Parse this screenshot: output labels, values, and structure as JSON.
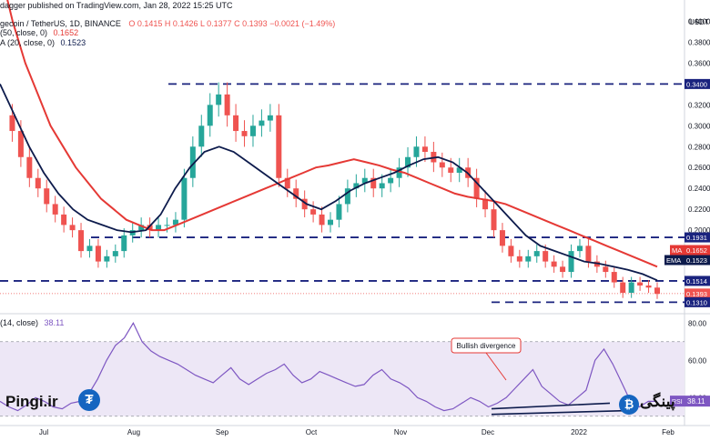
{
  "header": {
    "published": "dagger published on TradingView.com, Jan 28, 2022 15:25 UTC",
    "symbol_line": "gecoin / TetherUS, 1D, BINANCE",
    "ohlc": "O 0.1415  H 0.1426  L 0.1377  C 0.1393  −0.0021 (−1.49%)",
    "ma_line": "(50, close, 0)",
    "ma_value": "0.1652",
    "ema_line": "A (20, close, 0)",
    "ema_value": "0.1523"
  },
  "price_axis": {
    "currency": "USDT",
    "ticks": [
      "0.4000",
      "0.3800",
      "0.3600",
      "0.3400",
      "0.3200",
      "0.3000",
      "0.2800",
      "0.2600",
      "0.2400",
      "0.2200",
      "0.2000",
      "0.1800"
    ],
    "tags": [
      {
        "text": "0.3400",
        "kind": "level"
      },
      {
        "text": "0.1931",
        "kind": "level"
      },
      {
        "text": "MA",
        "kind": "ma-label"
      },
      {
        "text": "0.1652",
        "kind": "ma"
      },
      {
        "text": "EMA",
        "kind": "ema-label"
      },
      {
        "text": "0.1523",
        "kind": "ema"
      },
      {
        "text": "0.1514",
        "kind": "level"
      },
      {
        "text": "0.1393",
        "kind": "price"
      },
      {
        "text": "08:34:",
        "kind": "countdown"
      },
      {
        "text": "0.1310",
        "kind": "level"
      }
    ]
  },
  "rsi_panel": {
    "label": "(14, close)",
    "value": "38.11",
    "tag_label": "RSI",
    "ticks": [
      "80.00",
      "60.00",
      "40.00"
    ]
  },
  "x_axis": {
    "labels": [
      "Jul",
      "Aug",
      "Sep",
      "Oct",
      "Nov",
      "Dec",
      "2022",
      "Feb"
    ]
  },
  "annotation": "Bullish divergence",
  "watermark": {
    "left": "Pingi.ir",
    "right": "پینگی"
  },
  "colors": {
    "up": "#26a69a",
    "down": "#ef5350",
    "ma": "#e53935",
    "ema": "#0d1b4c",
    "level": "#1a237e",
    "rsi": "#7e57c2",
    "rsi_band": "#ede7f6",
    "logo": "#1565c0"
  },
  "chart_data": {
    "type": "candlestick",
    "title": "gecoin / TetherUS, 1D, BINANCE",
    "ylabel": "USDT",
    "ylim": [
      0.12,
      0.41
    ],
    "horizontal_levels": [
      0.34,
      0.1931,
      0.1514,
      0.131
    ],
    "x_labels": [
      "Jul",
      "Aug",
      "Sep",
      "Oct",
      "Nov",
      "Dec",
      "2022",
      "Feb"
    ],
    "close_series": {
      "name": "close",
      "values": [
        0.31,
        0.295,
        0.27,
        0.25,
        0.24,
        0.225,
        0.215,
        0.205,
        0.2,
        0.18,
        0.185,
        0.17,
        0.175,
        0.18,
        0.195,
        0.2,
        0.205,
        0.2,
        0.205,
        0.205,
        0.21,
        0.25,
        0.28,
        0.3,
        0.32,
        0.33,
        0.31,
        0.295,
        0.29,
        0.3,
        0.305,
        0.31,
        0.25,
        0.24,
        0.23,
        0.22,
        0.215,
        0.205,
        0.21,
        0.225,
        0.24,
        0.245,
        0.25,
        0.24,
        0.245,
        0.25,
        0.26,
        0.27,
        0.28,
        0.275,
        0.265,
        0.26,
        0.255,
        0.26,
        0.25,
        0.23,
        0.22,
        0.2,
        0.185,
        0.175,
        0.17,
        0.175,
        0.18,
        0.17,
        0.165,
        0.16,
        0.18,
        0.185,
        0.17,
        0.165,
        0.16,
        0.15,
        0.14,
        0.15,
        0.147,
        0.145,
        0.139
      ]
    },
    "overlays": [
      {
        "name": "MA (50, close, 0)",
        "last": 0.1652,
        "values": [
          0.45,
          0.4,
          0.36,
          0.33,
          0.3,
          0.28,
          0.26,
          0.245,
          0.23,
          0.22,
          0.21,
          0.205,
          0.2,
          0.2,
          0.205,
          0.21,
          0.215,
          0.22,
          0.225,
          0.23,
          0.235,
          0.24,
          0.245,
          0.25,
          0.255,
          0.26,
          0.262,
          0.265,
          0.268,
          0.265,
          0.262,
          0.258,
          0.255,
          0.25,
          0.245,
          0.24,
          0.235,
          0.232,
          0.23,
          0.228,
          0.225,
          0.22,
          0.215,
          0.21,
          0.205,
          0.2,
          0.195,
          0.19,
          0.185,
          0.18,
          0.175,
          0.17,
          0.165
        ]
      },
      {
        "name": "EMA (20, close, 0)",
        "last": 0.1523,
        "values": [
          0.34,
          0.31,
          0.28,
          0.255,
          0.235,
          0.22,
          0.21,
          0.205,
          0.2,
          0.198,
          0.2,
          0.215,
          0.24,
          0.26,
          0.275,
          0.28,
          0.275,
          0.265,
          0.255,
          0.245,
          0.235,
          0.225,
          0.22,
          0.228,
          0.238,
          0.245,
          0.25,
          0.255,
          0.262,
          0.268,
          0.27,
          0.265,
          0.255,
          0.24,
          0.225,
          0.21,
          0.195,
          0.185,
          0.18,
          0.175,
          0.17,
          0.168,
          0.165,
          0.162,
          0.158,
          0.152
        ]
      }
    ],
    "rsi": {
      "name": "RSI (14, close)",
      "ylim": [
        25,
        85
      ],
      "last": 38.11,
      "values": [
        38,
        35,
        33,
        36,
        40,
        38,
        35,
        34,
        37,
        38,
        42,
        50,
        60,
        68,
        72,
        80,
        70,
        65,
        62,
        60,
        58,
        55,
        52,
        50,
        48,
        52,
        56,
        50,
        47,
        50,
        53,
        55,
        58,
        52,
        48,
        50,
        54,
        52,
        50,
        48,
        46,
        47,
        52,
        55,
        50,
        48,
        45,
        40,
        38,
        35,
        33,
        34,
        37,
        40,
        38,
        35,
        37,
        40,
        45,
        50,
        55,
        46,
        42,
        38,
        36,
        40,
        44,
        60,
        66,
        58,
        48,
        38,
        35,
        38,
        38
      ]
    }
  }
}
